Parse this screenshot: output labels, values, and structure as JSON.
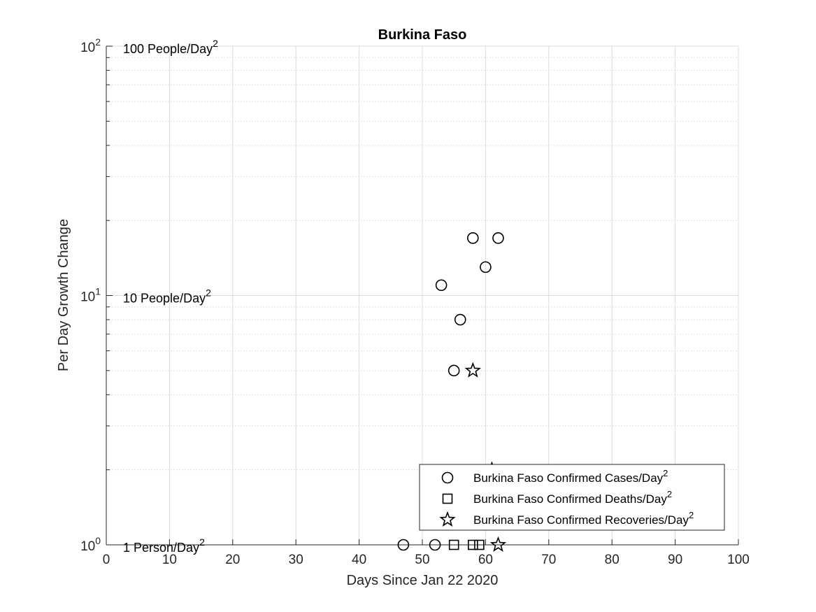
{
  "chart_data": {
    "type": "scatter",
    "title": "Burkina Faso",
    "xlabel": "Days Since Jan 22 2020",
    "ylabel": "Per Day Growth Change",
    "xlim": [
      0,
      100
    ],
    "ylim": [
      1,
      100
    ],
    "y_scale": "log",
    "grid": true,
    "x_ticks": [
      "0",
      "10",
      "20",
      "30",
      "40",
      "50",
      "60",
      "70",
      "80",
      "90",
      "100"
    ],
    "y_ticks": [
      {
        "value": 1,
        "base": "10",
        "exp": "0"
      },
      {
        "value": 10,
        "base": "10",
        "exp": "1"
      },
      {
        "value": 100,
        "base": "10",
        "exp": "2"
      }
    ],
    "reference_labels": [
      {
        "y": 100,
        "text": "100 People/Day",
        "sup": "2"
      },
      {
        "y": 10,
        "text": "10 People/Day",
        "sup": "2"
      },
      {
        "y": 1,
        "text": "1 Person/Day",
        "sup": "2"
      }
    ],
    "legend_position": "bottom-right",
    "series": [
      {
        "name": "Burkina Faso Confirmed Cases/Day",
        "name_sup": "2",
        "marker": "circle",
        "points": [
          {
            "x": 47,
            "y": 1
          },
          {
            "x": 52,
            "y": 1
          },
          {
            "x": 53,
            "y": 11
          },
          {
            "x": 55,
            "y": 5
          },
          {
            "x": 56,
            "y": 8
          },
          {
            "x": 58,
            "y": 17
          },
          {
            "x": 60,
            "y": 13
          },
          {
            "x": 62,
            "y": 17
          }
        ]
      },
      {
        "name": "Burkina Faso Confirmed Deaths/Day",
        "name_sup": "2",
        "marker": "square",
        "points": [
          {
            "x": 55,
            "y": 1
          },
          {
            "x": 58,
            "y": 1
          },
          {
            "x": 59,
            "y": 1
          }
        ]
      },
      {
        "name": "Burkina Faso Confirmed Recoveries/Day",
        "name_sup": "2",
        "marker": "star",
        "points": [
          {
            "x": 58,
            "y": 5
          },
          {
            "x": 61,
            "y": 2
          },
          {
            "x": 62,
            "y": 1
          }
        ]
      }
    ]
  }
}
